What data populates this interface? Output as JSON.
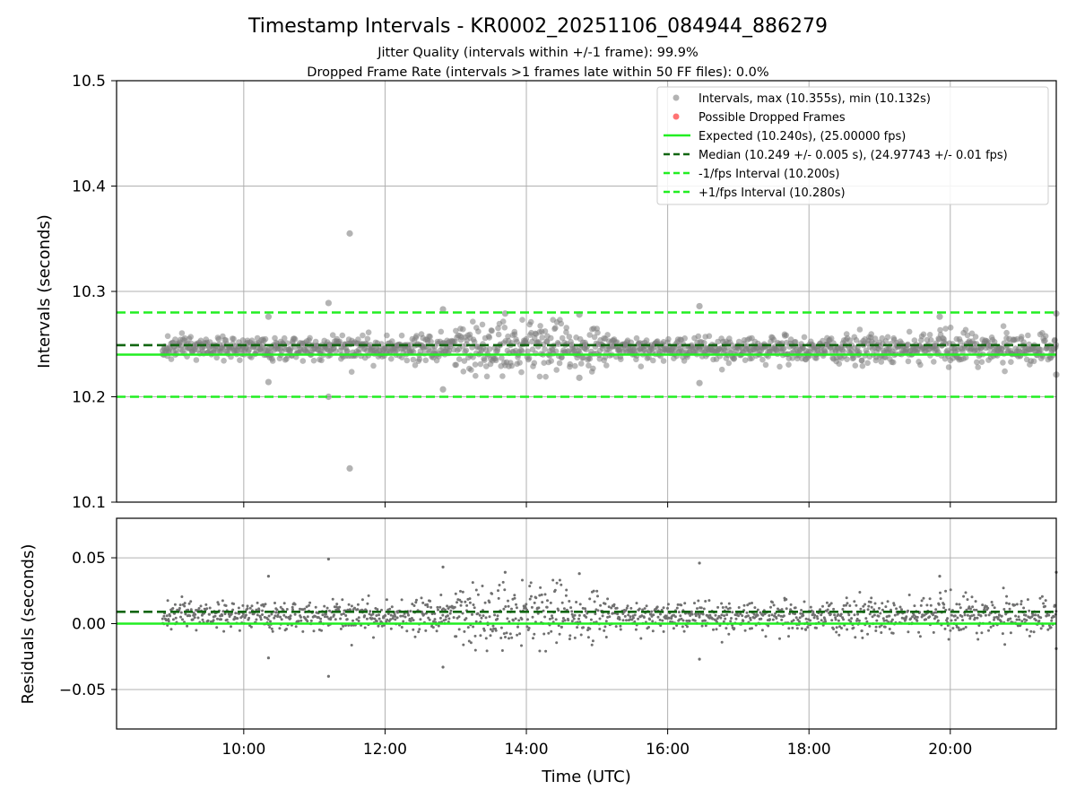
{
  "chart_data": [
    {
      "type": "scatter",
      "title": "Timestamp Intervals - KR0002_20251106_084944_886279",
      "subtitle_lines": [
        "Jitter Quality (intervals within +/-1 frame): 99.9%",
        "Dropped Frame Rate (intervals >1 frames late within 50 FF files): 0.0%"
      ],
      "xlabel": "",
      "ylabel": "Intervals (seconds)",
      "xlim_hours": [
        8.2,
        21.5
      ],
      "ylim": [
        10.1,
        10.5
      ],
      "y_ticks": [
        10.1,
        10.2,
        10.3,
        10.4,
        10.5
      ],
      "y_tick_labels": [
        "10.1",
        "10.2",
        "10.3",
        "10.4",
        "10.5"
      ],
      "x_ticks_hours": [
        10,
        12,
        14,
        16,
        18,
        20
      ],
      "grid": true,
      "legend_position": "top-right",
      "legend": [
        {
          "label": "Intervals, max (10.355s), min (10.132s)",
          "kind": "marker",
          "color": "#808080"
        },
        {
          "label": "Possible Dropped Frames",
          "kind": "marker",
          "color": "#ff0000"
        },
        {
          "label": "Expected (10.240s), (25.00000 fps)",
          "kind": "solid",
          "color": "#22ee22"
        },
        {
          "label": "Median (10.249 +/- 0.005 s), (24.97743 +/- 0.01 fps)",
          "kind": "dashed",
          "color": "#116611"
        },
        {
          "label": "-1/fps Interval (10.200s)",
          "kind": "dashed",
          "color": "#22ee22"
        },
        {
          "label": "+1/fps Interval (10.280s)",
          "kind": "dashed",
          "color": "#22ee22"
        }
      ],
      "hlines": [
        {
          "name": "expected",
          "y": 10.24,
          "style": "solid",
          "color": "#22ee22"
        },
        {
          "name": "median",
          "y": 10.249,
          "style": "dashed",
          "color": "#116611"
        },
        {
          "name": "minus-one-fps",
          "y": 10.2,
          "style": "dashed",
          "color": "#22ee22"
        },
        {
          "name": "plus-one-fps",
          "y": 10.28,
          "style": "dashed",
          "color": "#22ee22"
        }
      ],
      "series": {
        "name": "Intervals",
        "x_start_hours": 8.85,
        "x_end_hours": 21.5,
        "baseline": 10.246,
        "color": "#808080",
        "outliers": [
          {
            "x": 11.5,
            "y": 10.355
          },
          {
            "x": 11.5,
            "y": 10.132
          },
          {
            "x": 11.2,
            "y": 10.289
          },
          {
            "x": 11.2,
            "y": 10.2
          },
          {
            "x": 10.35,
            "y": 10.276
          },
          {
            "x": 10.35,
            "y": 10.214
          },
          {
            "x": 12.82,
            "y": 10.283
          },
          {
            "x": 12.82,
            "y": 10.207
          },
          {
            "x": 16.45,
            "y": 10.286
          },
          {
            "x": 16.45,
            "y": 10.213
          },
          {
            "x": 14.75,
            "y": 10.278
          },
          {
            "x": 14.75,
            "y": 10.218
          },
          {
            "x": 13.7,
            "y": 10.279
          },
          {
            "x": 19.85,
            "y": 10.276
          },
          {
            "x": 21.5,
            "y": 10.279
          },
          {
            "x": 21.5,
            "y": 10.221
          }
        ]
      }
    },
    {
      "type": "scatter",
      "title": "",
      "xlabel": "Time (UTC)",
      "ylabel": "Residuals (seconds)",
      "xlim_hours": [
        8.2,
        21.5
      ],
      "ylim": [
        -0.08,
        0.08
      ],
      "y_ticks": [
        -0.05,
        0.0,
        0.05
      ],
      "y_tick_labels": [
        "−0.05",
        "0.00",
        "0.05"
      ],
      "x_ticks_hours": [
        10,
        12,
        14,
        16,
        18,
        20
      ],
      "x_tick_labels": [
        "10:00",
        "12:00",
        "14:00",
        "16:00",
        "18:00",
        "20:00"
      ],
      "grid": true,
      "hlines": [
        {
          "name": "zero",
          "y": 0.0,
          "style": "solid",
          "color": "#22ee22"
        },
        {
          "name": "median-offset",
          "y": 0.009,
          "style": "dashed",
          "color": "#116611"
        }
      ],
      "series": {
        "name": "Residuals",
        "color": "#707070",
        "outliers": [
          {
            "x": 11.2,
            "y": 0.049
          },
          {
            "x": 11.2,
            "y": -0.04
          },
          {
            "x": 10.35,
            "y": 0.036
          },
          {
            "x": 10.35,
            "y": -0.026
          },
          {
            "x": 12.82,
            "y": 0.043
          },
          {
            "x": 12.82,
            "y": -0.033
          },
          {
            "x": 16.45,
            "y": 0.046
          },
          {
            "x": 16.45,
            "y": -0.027
          },
          {
            "x": 14.75,
            "y": 0.038
          },
          {
            "x": 13.7,
            "y": 0.039
          },
          {
            "x": 19.85,
            "y": 0.036
          },
          {
            "x": 21.5,
            "y": 0.039
          },
          {
            "x": 21.5,
            "y": -0.019
          }
        ]
      }
    }
  ]
}
